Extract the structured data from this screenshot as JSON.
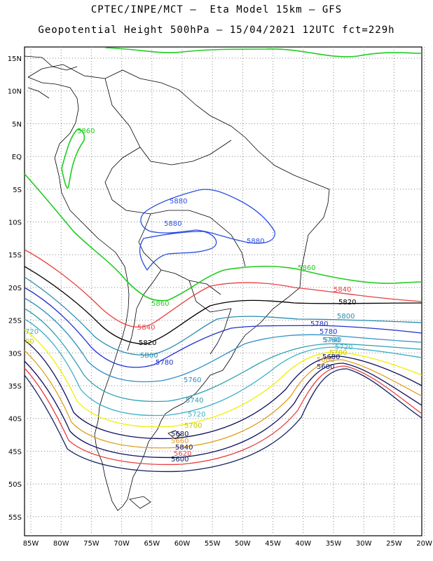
{
  "header": {
    "line1": "CPTEC/INPE/MCT –  Eta Model 15km – GFS",
    "line2": "Geopotential Height 500hPa – 15/04/2021 12UTC fct=229h"
  },
  "axes": {
    "lat_labels": [
      "15N",
      "10N",
      "5N",
      "EQ",
      "5S",
      "10S",
      "15S",
      "20S",
      "25S",
      "30S",
      "35S",
      "40S",
      "45S",
      "50S",
      "55S"
    ],
    "lon_labels": [
      "85W",
      "80W",
      "75W",
      "70W",
      "65W",
      "60W",
      "55W",
      "50W",
      "45W",
      "40W",
      "35W",
      "30W",
      "25W",
      "20W"
    ],
    "lat_range": [
      17,
      -58
    ],
    "lon_range": [
      -86,
      -20
    ],
    "grid": "dotted"
  },
  "colors": {
    "c5880": "#2a4fe0",
    "c5860": "#22cc22",
    "c5840": "#e84040",
    "c5820": "#000000",
    "c5800": "#2a8cb0",
    "c5780": "#2030d0",
    "c5760": "#3090c8",
    "c5740": "#30a0b0",
    "c5720": "#40b0c8",
    "c5700": "#f0f000",
    "c5680": "#101060",
    "c5660": "#e0a020",
    "c5640": "#101060",
    "c5620": "#e84040",
    "c5600": "#102060",
    "coast": "#000000"
  },
  "labels": {
    "l5880a": "5880",
    "l5880b": "5880",
    "l5880c": "5880",
    "l5860a": "5860",
    "l5860b": "5860",
    "l5860c": "5860",
    "l5840a": "5840",
    "l5840b": "5840",
    "l5820a": "5820",
    "l5820b": "5820",
    "l5800a": "5800",
    "l5800b": "5800",
    "l5780a": "5780",
    "l5780b": "5780",
    "l5780c": "5780",
    "l5760a": "5760",
    "l5760b": "5760",
    "l5740a": "5740",
    "l5740b": "5740",
    "l5720a": "720",
    "l5720b": "5720",
    "l5720c": "5720",
    "l5700a": "00",
    "l5700b": "5700",
    "l5700c": "5700",
    "l5680a": "5680",
    "l5680b": "5680",
    "l5660a": "5660",
    "l5660b": "5660",
    "l5640": "5840",
    "l5620": "5620",
    "l5600a": "5600",
    "l5600b": "5600"
  }
}
